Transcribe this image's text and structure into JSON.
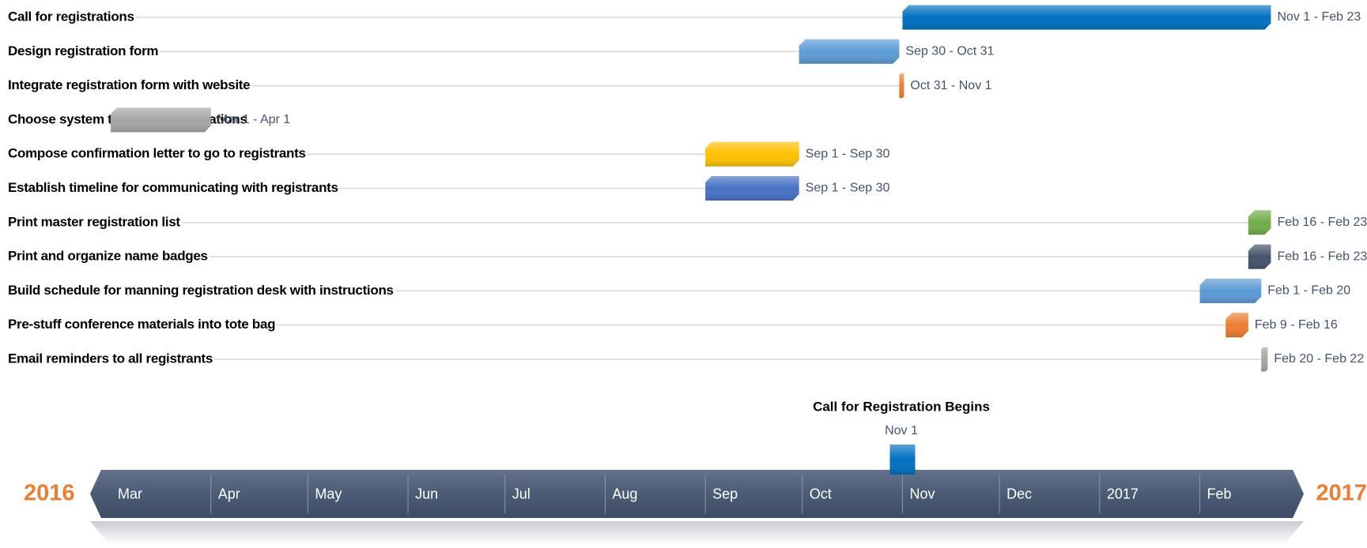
{
  "chart_data": {
    "type": "gantt",
    "tasks": [
      {
        "name": "Call for registrations",
        "start": "2016-11-01",
        "end": "2017-02-23",
        "dates": "Nov 1 - Feb 23",
        "color": "#0070c0"
      },
      {
        "name": "Design registration form",
        "start": "2016-09-30",
        "end": "2016-10-31",
        "dates": "Sep 30 - Oct 31",
        "color": "#5b9bd5"
      },
      {
        "name": "Integrate registration form with website",
        "start": "2016-10-31",
        "end": "2016-11-01",
        "dates": "Oct 31 - Nov 1",
        "color": "#ed7d31"
      },
      {
        "name": "Choose system to handle registrations",
        "start": "2016-03-01",
        "end": "2016-04-01",
        "dates": "Mar 1 - Apr 1",
        "color": "#a5a5a5"
      },
      {
        "name": "Compose confirmation letter to go to registrants",
        "start": "2016-09-01",
        "end": "2016-09-30",
        "dates": "Sep 1 - Sep 30",
        "color": "#ffc000"
      },
      {
        "name": "Establish timeline for communicating with registrants",
        "start": "2016-09-01",
        "end": "2016-09-30",
        "dates": "Sep 1 - Sep 30",
        "color": "#4472c4"
      },
      {
        "name": "Print master registration list",
        "start": "2017-02-16",
        "end": "2017-02-23",
        "dates": "Feb 16 - Feb 23",
        "color": "#70ad47"
      },
      {
        "name": "Print and organize name badges",
        "start": "2017-02-16",
        "end": "2017-02-23",
        "dates": "Feb 16 - Feb 23",
        "color": "#44546a"
      },
      {
        "name": "Build schedule for manning registration desk with instructions",
        "start": "2017-02-01",
        "end": "2017-02-20",
        "dates": "Feb 1 - Feb 20",
        "color": "#5b9bd5"
      },
      {
        "name": "Pre-stuff conference materials into tote bag",
        "start": "2017-02-09",
        "end": "2017-02-16",
        "dates": "Feb 9 - Feb 16",
        "color": "#ed7d31"
      },
      {
        "name": "Email reminders to all registrants",
        "start": "2017-02-20",
        "end": "2017-02-22",
        "dates": "Feb 20 - Feb 22",
        "color": "#a5a5a5"
      }
    ],
    "milestone": {
      "title": "Call for Registration Begins",
      "date": "2016-11-01",
      "label": "Nov 1",
      "color": "#0070c0"
    },
    "xlim": [
      "2016-03-01",
      "2017-03-01"
    ],
    "xticks": [
      {
        "value": "2016-03-01",
        "label": "Mar"
      },
      {
        "value": "2016-04-01",
        "label": "Apr"
      },
      {
        "value": "2016-05-01",
        "label": "May"
      },
      {
        "value": "2016-06-01",
        "label": "Jun"
      },
      {
        "value": "2016-07-01",
        "label": "Jul"
      },
      {
        "value": "2016-08-01",
        "label": "Aug"
      },
      {
        "value": "2016-09-01",
        "label": "Sep"
      },
      {
        "value": "2016-10-01",
        "label": "Oct"
      },
      {
        "value": "2016-11-01",
        "label": "Nov"
      },
      {
        "value": "2016-12-01",
        "label": "Dec"
      },
      {
        "value": "2017-01-01",
        "label": "2017"
      },
      {
        "value": "2017-02-01",
        "label": "Feb"
      }
    ],
    "start_label": "2016",
    "end_label": "2017",
    "axis_color": "#44546a",
    "year_color": "#ed7d31"
  }
}
